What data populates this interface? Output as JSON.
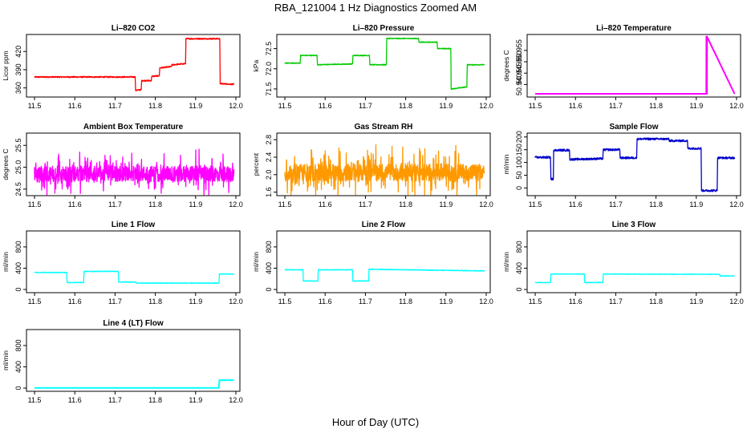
{
  "figure": {
    "title": "RBA_121004  1 Hz Diagnostics Zoomed AM",
    "xlabel": "Hour of Day (UTC)"
  },
  "chart_data": [
    {
      "type": "line",
      "title": "Li–820 CO2",
      "ylabel": "Licor ppm",
      "color": "#ff0000",
      "xlim": [
        11.48,
        12.01
      ],
      "ylim": [
        345,
        448
      ],
      "xticks": [
        "11.5",
        "11.6",
        "11.7",
        "11.8",
        "11.9",
        "12.0"
      ],
      "yticks": [
        "360",
        "390",
        "420"
      ],
      "series": [
        {
          "noise": 1.0,
          "x": [
            11.5,
            11.75,
            11.751,
            11.765,
            11.766,
            11.79,
            11.791,
            11.81,
            11.811,
            11.84,
            11.841,
            11.875,
            11.876,
            11.96,
            11.961,
            11.995
          ],
          "y": [
            378,
            378,
            356,
            357,
            372,
            372,
            379,
            380,
            393,
            395,
            398,
            400,
            441,
            441,
            367,
            366
          ]
        }
      ]
    },
    {
      "type": "line",
      "title": "Li–820 Pressure",
      "ylabel": "kPa",
      "color": "#00cc00",
      "xlim": [
        11.48,
        12.01
      ],
      "ylim": [
        71.3,
        72.85
      ],
      "xticks": [
        "11.5",
        "11.6",
        "11.7",
        "11.8",
        "11.9",
        "12.0"
      ],
      "yticks": [
        "71.5",
        "72.0",
        "72.5"
      ],
      "series": [
        {
          "noise": 0.01,
          "x": [
            11.5,
            11.538,
            11.539,
            11.58,
            11.581,
            11.668,
            11.669,
            11.71,
            11.711,
            11.752,
            11.753,
            11.832,
            11.833,
            11.878,
            11.879,
            11.912,
            11.913,
            11.952,
            11.953,
            11.995
          ],
          "y": [
            72.14,
            72.14,
            72.33,
            72.33,
            72.1,
            72.12,
            72.33,
            72.33,
            72.1,
            72.1,
            72.75,
            72.75,
            72.66,
            72.66,
            72.5,
            72.5,
            71.5,
            71.55,
            72.1,
            72.1
          ]
        }
      ]
    },
    {
      "type": "line",
      "title": "Li–820 Temperature",
      "ylabel": "degrees C",
      "color": "#ff00ff",
      "xlim": [
        11.48,
        12.01
      ],
      "ylim": [
        50.9345,
        50.962
      ],
      "xticks": [
        "11.5",
        "11.6",
        "11.7",
        "11.8",
        "11.9",
        "12.0"
      ],
      "yticks": [
        "50.940",
        "50.945",
        "50.950",
        "50.955"
      ],
      "series": [
        {
          "noise": 0,
          "x": [
            11.5,
            11.925,
            11.9251,
            11.9252,
            11.9253,
            11.9254,
            11.9255,
            11.9256,
            11.9257,
            11.9258,
            11.9259,
            11.926,
            11.9261,
            11.9262,
            11.9263,
            11.9264,
            11.9265,
            11.9266,
            11.9267,
            11.995
          ],
          "y": [
            50.9359,
            50.9359,
            50.961,
            50.9359,
            50.961,
            50.9359,
            50.961,
            50.9359,
            50.961,
            50.9359,
            50.961,
            50.9359,
            50.961,
            50.9359,
            50.961,
            50.9359,
            50.961,
            50.9359,
            50.961,
            50.9359
          ]
        }
      ]
    },
    {
      "type": "line",
      "title": "Ambient Box Temperature",
      "ylabel": "degrees C",
      "color": "#ff00ff",
      "xlim": [
        11.48,
        12.01
      ],
      "ylim": [
        24.35,
        25.78
      ],
      "xticks": [
        "11.5",
        "11.6",
        "11.7",
        "11.8",
        "11.9",
        "12.0"
      ],
      "yticks": [
        "24.5",
        "25.0",
        "25.5"
      ],
      "series": [
        {
          "noise": 0.18,
          "spikes": 0.25,
          "x": [
            11.5,
            11.995
          ],
          "y": [
            24.85,
            24.85
          ]
        }
      ]
    },
    {
      "type": "line",
      "title": "Gas Stream RH",
      "ylabel": "percent",
      "color": "#ff9900",
      "xlim": [
        11.48,
        12.01
      ],
      "ylim": [
        1.52,
        2.95
      ],
      "xticks": [
        "11.5",
        "11.6",
        "11.7",
        "11.8",
        "11.9",
        "12.0"
      ],
      "yticks": [
        "1.6",
        "2.0",
        "2.4",
        "2.8"
      ],
      "series": [
        {
          "noise": 0.2,
          "spikes": 0.25,
          "x": [
            11.5,
            11.995
          ],
          "y": [
            2.05,
            2.05
          ]
        }
      ]
    },
    {
      "type": "line",
      "title": "Sample Flow",
      "ylabel": "ml/min",
      "color": "#0000cc",
      "xlim": [
        11.48,
        12.01
      ],
      "ylim": [
        -30,
        215
      ],
      "xticks": [
        "11.5",
        "11.6",
        "11.7",
        "11.8",
        "11.9",
        "12.0"
      ],
      "yticks": [
        "0",
        "50",
        "100",
        "150",
        "200"
      ],
      "series": [
        {
          "noise": 4,
          "x": [
            11.5,
            11.538,
            11.539,
            11.545,
            11.546,
            11.585,
            11.586,
            11.668,
            11.669,
            11.71,
            11.711,
            11.752,
            11.753,
            11.832,
            11.833,
            11.878,
            11.879,
            11.912,
            11.913,
            11.952,
            11.953,
            11.995
          ],
          "y": [
            120,
            120,
            35,
            35,
            148,
            148,
            112,
            115,
            150,
            150,
            118,
            118,
            192,
            192,
            185,
            185,
            155,
            155,
            -10,
            -10,
            118,
            118
          ]
        }
      ]
    },
    {
      "type": "line",
      "title": "Line 1 Flow",
      "ylabel": "ml/min",
      "color": "#00ffff",
      "xlim": [
        11.48,
        12.01
      ],
      "ylim": [
        -60,
        1100
      ],
      "xticks": [
        "11.5",
        "11.6",
        "11.7",
        "11.8",
        "11.9",
        "12.0"
      ],
      "yticks": [
        "0",
        "400",
        "800"
      ],
      "series": [
        {
          "noise": 6,
          "x": [
            11.5,
            11.58,
            11.581,
            11.622,
            11.623,
            11.708,
            11.709,
            11.752,
            11.753,
            11.958,
            11.959,
            11.995
          ],
          "y": [
            320,
            320,
            130,
            130,
            340,
            340,
            140,
            140,
            120,
            120,
            290,
            290
          ]
        }
      ]
    },
    {
      "type": "line",
      "title": "Line 2 Flow",
      "ylabel": "ml/min",
      "color": "#00ffff",
      "xlim": [
        11.48,
        12.01
      ],
      "ylim": [
        -60,
        1100
      ],
      "xticks": [
        "11.5",
        "11.6",
        "11.7",
        "11.8",
        "11.9",
        "12.0"
      ],
      "yticks": [
        "0",
        "400",
        "800"
      ],
      "series": [
        {
          "noise": 6,
          "x": [
            11.5,
            11.545,
            11.546,
            11.582,
            11.583,
            11.668,
            11.669,
            11.708,
            11.709,
            11.995
          ],
          "y": [
            370,
            370,
            160,
            160,
            370,
            370,
            160,
            160,
            380,
            350
          ]
        }
      ]
    },
    {
      "type": "line",
      "title": "Line 3 Flow",
      "ylabel": "ml/min",
      "color": "#00ffff",
      "xlim": [
        11.48,
        12.01
      ],
      "ylim": [
        -60,
        1100
      ],
      "xticks": [
        "11.5",
        "11.6",
        "11.7",
        "11.8",
        "11.9",
        "12.0"
      ],
      "yticks": [
        "0",
        "400",
        "800"
      ],
      "series": [
        {
          "noise": 5,
          "x": [
            11.5,
            11.538,
            11.539,
            11.622,
            11.623,
            11.668,
            11.669,
            11.958,
            11.959,
            11.995
          ],
          "y": [
            130,
            130,
            290,
            290,
            130,
            130,
            290,
            285,
            255,
            255
          ]
        }
      ]
    },
    {
      "type": "line",
      "title": "Line 4 (LT) Flow",
      "ylabel": "ml/min",
      "color": "#00ffff",
      "xlim": [
        11.48,
        12.01
      ],
      "ylim": [
        -60,
        1100
      ],
      "xticks": [
        "11.5",
        "11.6",
        "11.7",
        "11.8",
        "11.9",
        "12.0"
      ],
      "yticks": [
        "0",
        "400",
        "800"
      ],
      "series": [
        {
          "noise": 0,
          "x": [
            11.5,
            11.958,
            11.959,
            11.995
          ],
          "y": [
            5,
            5,
            150,
            150
          ]
        }
      ]
    }
  ]
}
